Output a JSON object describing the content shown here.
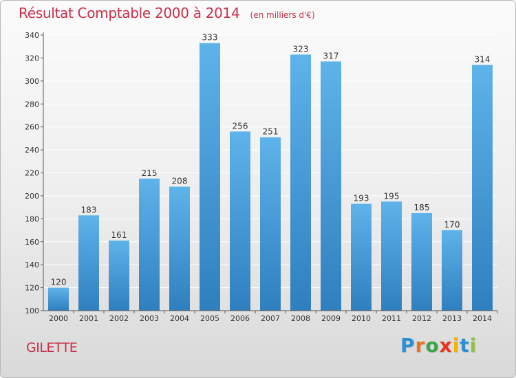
{
  "title": "Résultat Comptable 2000 à 2014",
  "subtitle": "(en milliers d'€)",
  "commune": "GILETTE",
  "brand": {
    "letters": [
      "P",
      "r",
      "o",
      "x",
      "i",
      "t",
      "i"
    ],
    "colors": [
      "#2b8fd6",
      "#e8731c",
      "#3aa64a",
      "#e8341c",
      "#f0b400",
      "#2b8fd6",
      "#8bc53f"
    ]
  },
  "colors": {
    "title": "#c8304a",
    "bar_top": "#5eb3ea",
    "bar_bottom": "#2f7fbf",
    "grid": "#ffffff",
    "axis": "#555555"
  },
  "chart_data": {
    "type": "bar",
    "title": "Résultat Comptable 2000 à 2014",
    "subtitle": "(en milliers d'€)",
    "xlabel": "",
    "ylabel": "",
    "categories": [
      "2000",
      "2001",
      "2002",
      "2003",
      "2004",
      "2005",
      "2006",
      "2007",
      "2008",
      "2009",
      "2010",
      "2011",
      "2012",
      "2013",
      "2014"
    ],
    "values": [
      120,
      183,
      161,
      215,
      208,
      333,
      256,
      251,
      323,
      317,
      193,
      195,
      185,
      170,
      314
    ],
    "ylim": [
      100,
      340
    ],
    "yticks": [
      100,
      120,
      140,
      160,
      180,
      200,
      220,
      240,
      260,
      280,
      300,
      320,
      340
    ],
    "grid": true,
    "legend": "none"
  }
}
